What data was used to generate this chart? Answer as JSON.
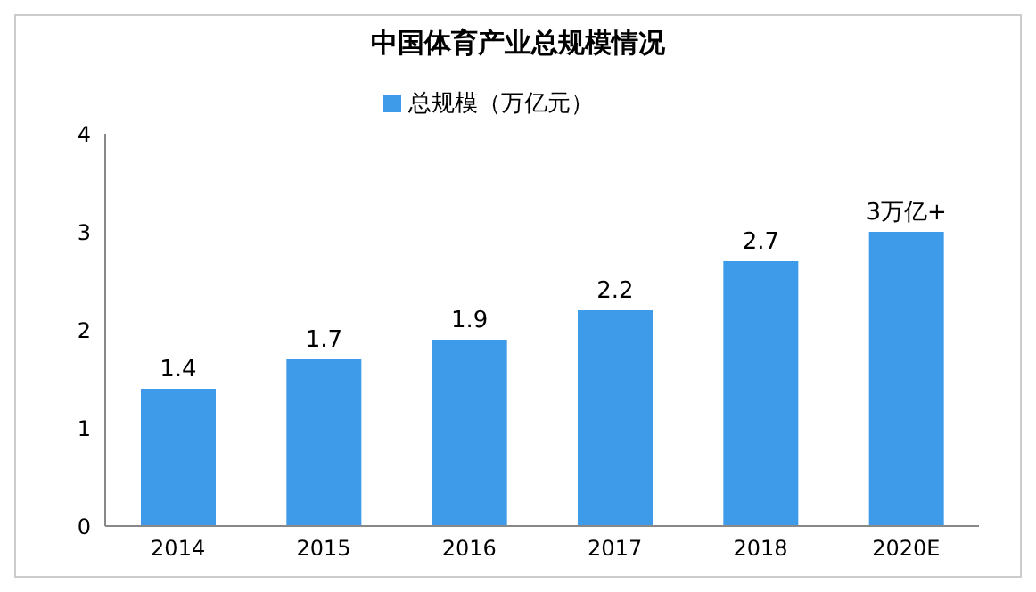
{
  "chart_data": {
    "type": "bar",
    "title": "中国体育产业总规模情况",
    "categories": [
      "2014",
      "2015",
      "2016",
      "2017",
      "2018",
      "2020E"
    ],
    "series": [
      {
        "name": "总规模（万亿元）",
        "color": "#3d9be9",
        "values": [
          1.4,
          1.7,
          1.9,
          2.2,
          2.7,
          3
        ],
        "value_labels": [
          "1.4",
          "1.7",
          "1.9",
          "2.2",
          "2.7",
          "3万亿+"
        ]
      }
    ],
    "ylim": [
      0,
      4
    ],
    "yticks": [
      0,
      1,
      2,
      3,
      4
    ],
    "grid": false,
    "legend": "top"
  }
}
